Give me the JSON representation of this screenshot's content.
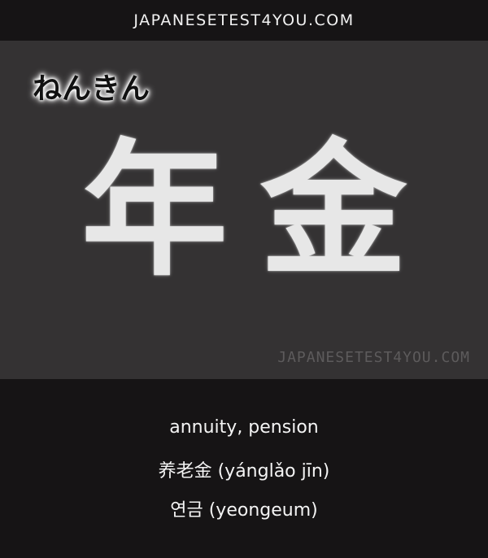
{
  "header": {
    "site_label": "JAPANESETEST4YOU.COM"
  },
  "card": {
    "reading": "ねんきん",
    "kanji": [
      "年",
      "金"
    ],
    "watermark": "JAPANESETEST4YOU.COM"
  },
  "info": {
    "meaning": "annuity, pension",
    "chinese": "养老金 (yánglǎo jīn)",
    "korean": "연금 (yeongeum)"
  }
}
